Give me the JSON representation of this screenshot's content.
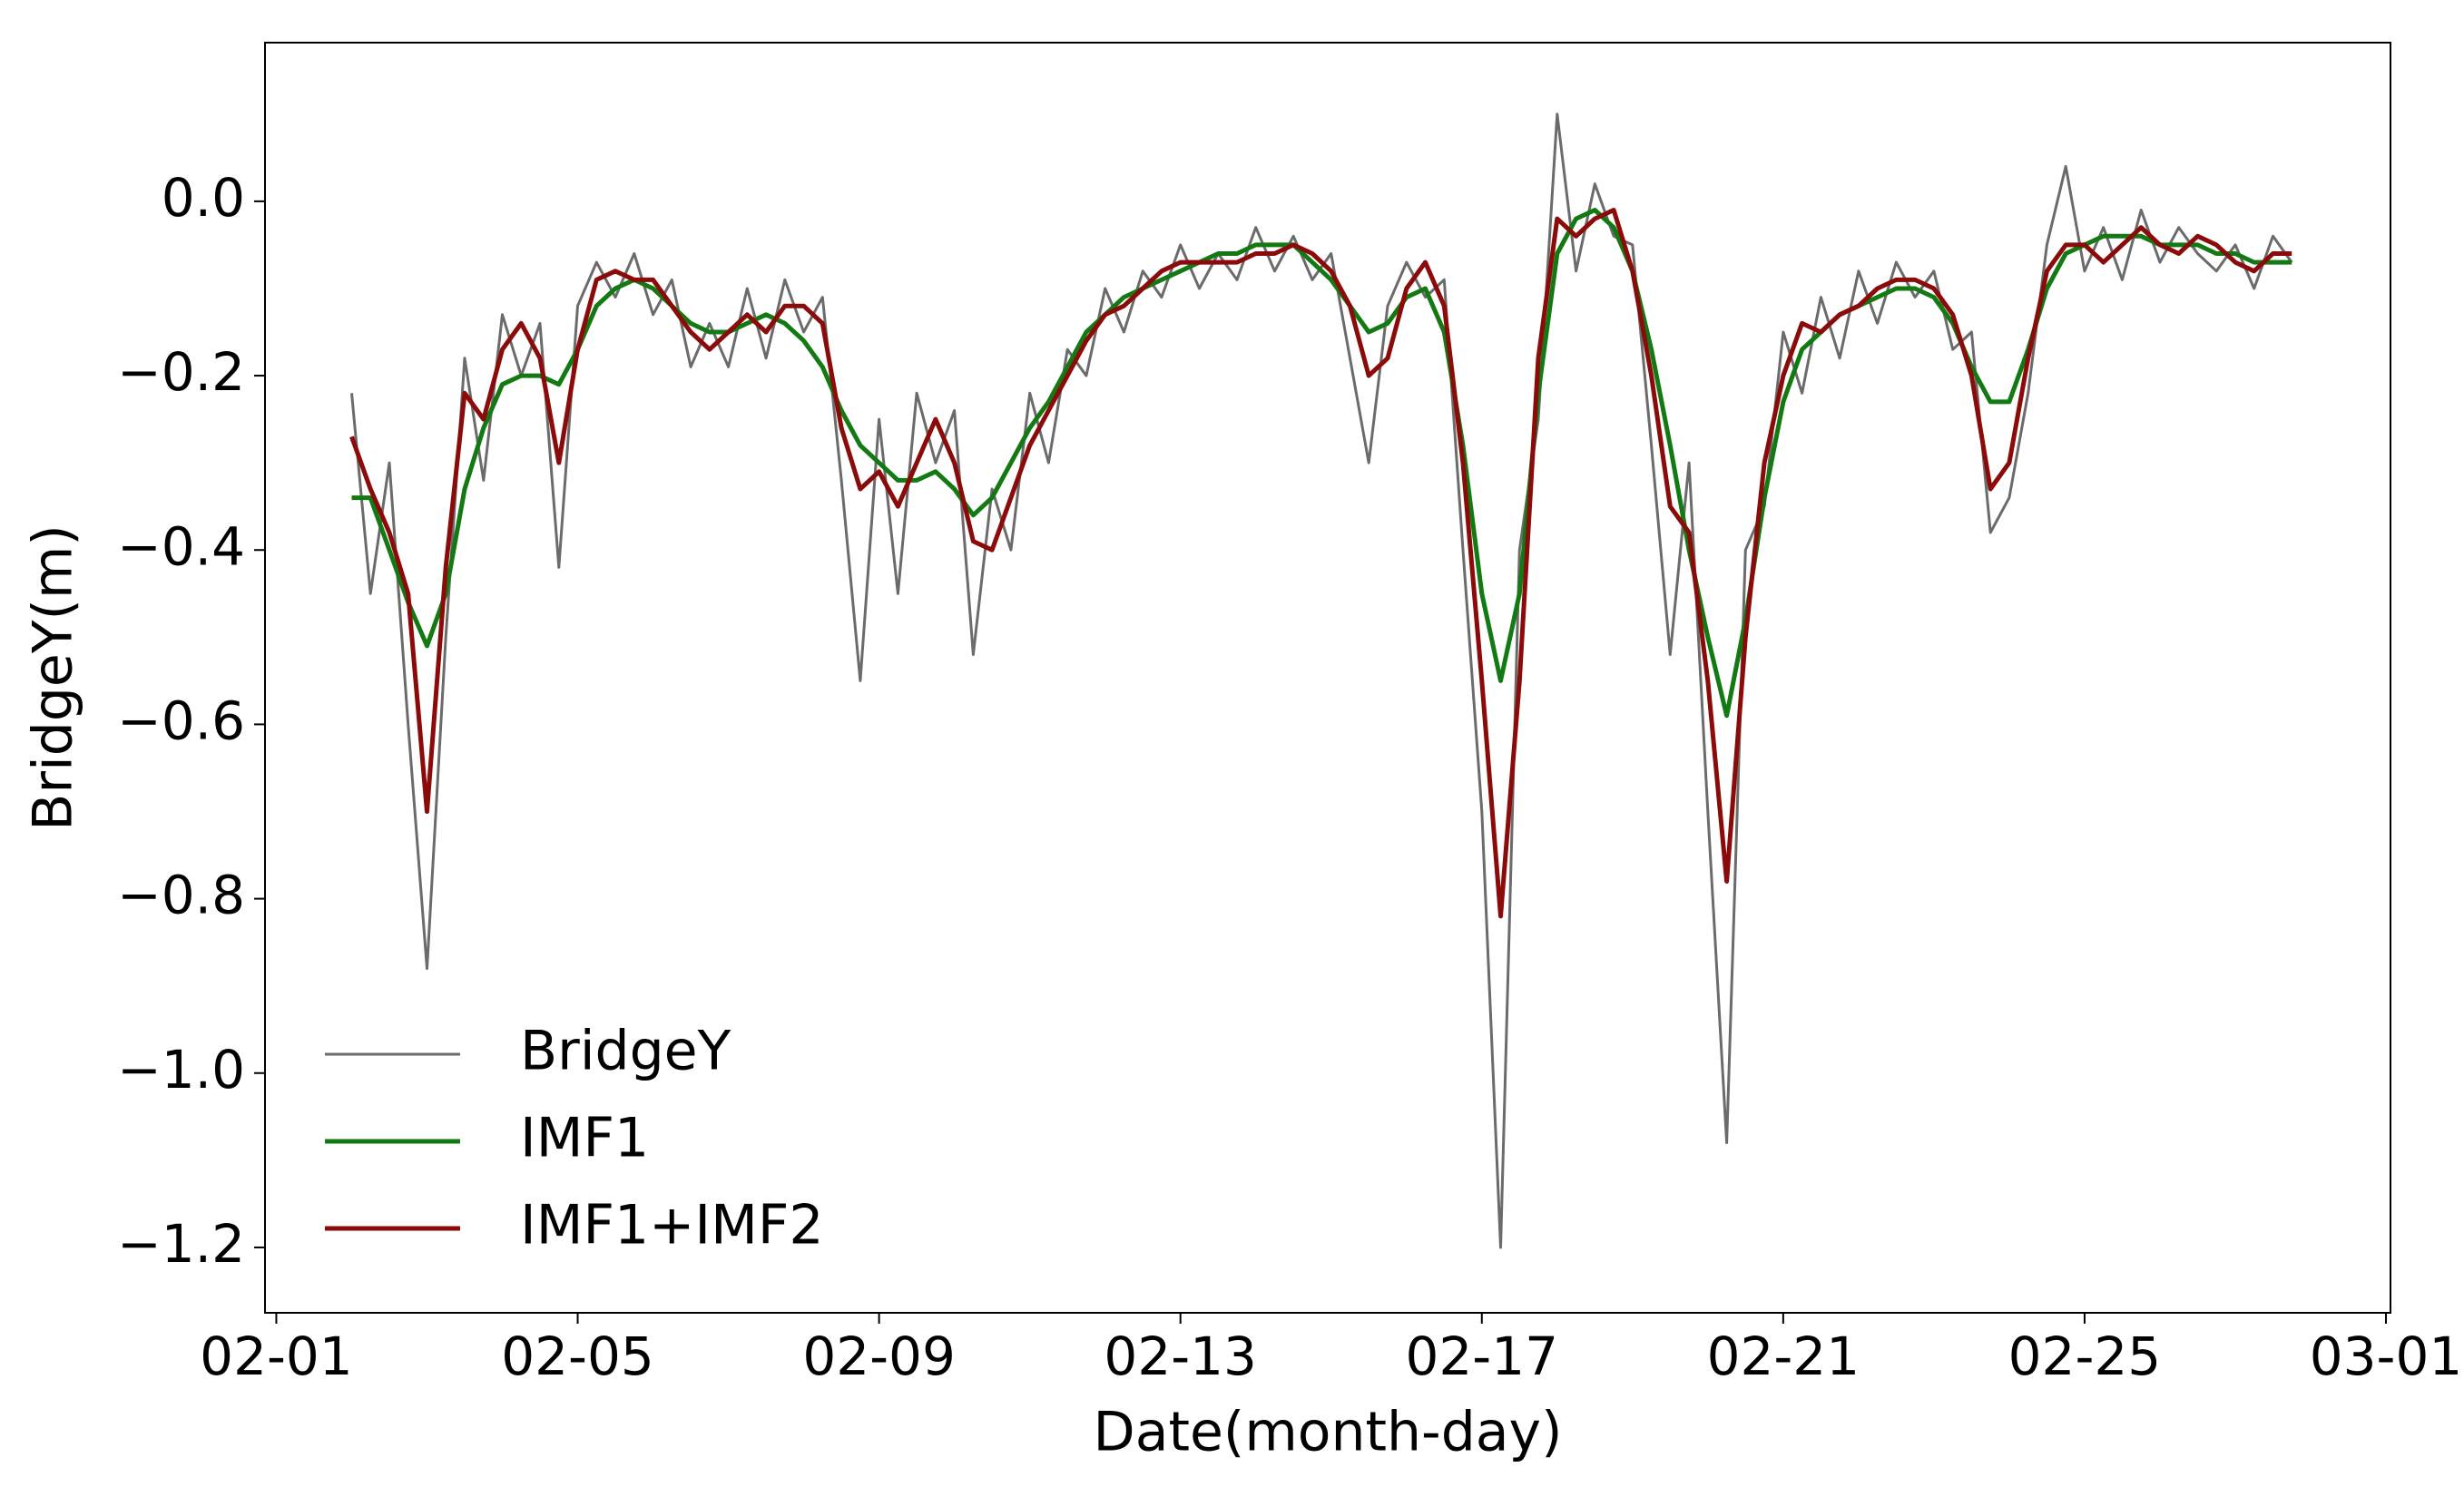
{
  "chart_data": {
    "type": "line",
    "xlabel": "Date(month-day)",
    "ylabel": "BridgeY(m)",
    "xlim": [
      0.85,
      29.06
    ],
    "ylim": [
      -1.275,
      0.182
    ],
    "xticks": [
      {
        "value": 1,
        "label": "02-01"
      },
      {
        "value": 5,
        "label": "02-05"
      },
      {
        "value": 9,
        "label": "02-09"
      },
      {
        "value": 13,
        "label": "02-13"
      },
      {
        "value": 17,
        "label": "02-17"
      },
      {
        "value": 21,
        "label": "02-21"
      },
      {
        "value": 25,
        "label": "02-25"
      },
      {
        "value": 29,
        "label": "03-01"
      }
    ],
    "yticks": [
      {
        "value": 0,
        "label": "0.0"
      },
      {
        "value": -0.2,
        "label": "−0.2"
      },
      {
        "value": -0.4,
        "label": "−0.4"
      },
      {
        "value": -0.6,
        "label": "−0.6"
      },
      {
        "value": -0.8,
        "label": "−0.8"
      },
      {
        "value": -1.0,
        "label": "−1.0"
      },
      {
        "value": -1.2,
        "label": "−1.2"
      }
    ],
    "legend": "lower left",
    "x": [
      2,
      2.25,
      2.5,
      2.75,
      3,
      3.25,
      3.5,
      3.75,
      4,
      4.25,
      4.5,
      4.75,
      5,
      5.25,
      5.5,
      5.75,
      6,
      6.25,
      6.5,
      6.75,
      7,
      7.25,
      7.5,
      7.75,
      8,
      8.25,
      8.5,
      8.75,
      9,
      9.25,
      9.5,
      9.75,
      10,
      10.25,
      10.5,
      10.75,
      11,
      11.25,
      11.5,
      11.75,
      12,
      12.25,
      12.5,
      12.75,
      13,
      13.25,
      13.5,
      13.75,
      14,
      14.25,
      14.5,
      14.75,
      15,
      15.25,
      15.5,
      15.75,
      16,
      16.25,
      16.5,
      16.75,
      17,
      17.25,
      17.5,
      17.75,
      18,
      18.25,
      18.5,
      18.75,
      19,
      19.25,
      19.5,
      19.75,
      20,
      20.25,
      20.5,
      20.75,
      21,
      21.25,
      21.5,
      21.75,
      22,
      22.25,
      22.5,
      22.75,
      23,
      23.25,
      23.5,
      23.75,
      24,
      24.25,
      24.5,
      24.75,
      25,
      25.25,
      25.5,
      25.75,
      26,
      26.25,
      26.5,
      26.75,
      27,
      27.25,
      27.5,
      27.75
    ],
    "series": [
      {
        "name": "BridgeY",
        "color": "#6b6b6b",
        "width": 3,
        "values": [
          -0.22,
          -0.45,
          -0.3,
          -0.6,
          -0.88,
          -0.5,
          -0.18,
          -0.32,
          -0.13,
          -0.2,
          -0.14,
          -0.42,
          -0.12,
          -0.07,
          -0.11,
          -0.06,
          -0.13,
          -0.09,
          -0.19,
          -0.14,
          -0.19,
          -0.1,
          -0.18,
          -0.09,
          -0.15,
          -0.11,
          -0.32,
          -0.55,
          -0.25,
          -0.45,
          -0.22,
          -0.3,
          -0.24,
          -0.52,
          -0.33,
          -0.4,
          -0.22,
          -0.3,
          -0.17,
          -0.2,
          -0.1,
          -0.15,
          -0.08,
          -0.11,
          -0.05,
          -0.1,
          -0.06,
          -0.09,
          -0.03,
          -0.08,
          -0.04,
          -0.09,
          -0.06,
          -0.18,
          -0.3,
          -0.12,
          -0.07,
          -0.11,
          -0.09,
          -0.4,
          -0.7,
          -1.2,
          -0.4,
          -0.25,
          0.1,
          -0.08,
          0.02,
          -0.04,
          -0.05,
          -0.28,
          -0.52,
          -0.3,
          -0.7,
          -1.08,
          -0.4,
          -0.35,
          -0.15,
          -0.22,
          -0.11,
          -0.18,
          -0.08,
          -0.14,
          -0.07,
          -0.11,
          -0.08,
          -0.17,
          -0.15,
          -0.38,
          -0.34,
          -0.22,
          -0.05,
          0.04,
          -0.08,
          -0.03,
          -0.09,
          -0.01,
          -0.07,
          -0.03,
          -0.06,
          -0.08,
          -0.05,
          -0.1,
          -0.04,
          -0.07
        ]
      },
      {
        "name": "IMF1",
        "color": "#137a13",
        "width": 5,
        "values": [
          -0.34,
          -0.34,
          -0.4,
          -0.46,
          -0.51,
          -0.45,
          -0.33,
          -0.26,
          -0.21,
          -0.2,
          -0.2,
          -0.21,
          -0.17,
          -0.12,
          -0.1,
          -0.09,
          -0.1,
          -0.12,
          -0.14,
          -0.15,
          -0.15,
          -0.14,
          -0.13,
          -0.14,
          -0.16,
          -0.19,
          -0.24,
          -0.28,
          -0.3,
          -0.32,
          -0.32,
          -0.31,
          -0.33,
          -0.36,
          -0.34,
          -0.3,
          -0.26,
          -0.23,
          -0.19,
          -0.15,
          -0.13,
          -0.11,
          -0.1,
          -0.09,
          -0.08,
          -0.07,
          -0.06,
          -0.06,
          -0.05,
          -0.05,
          -0.05,
          -0.07,
          -0.09,
          -0.12,
          -0.15,
          -0.14,
          -0.11,
          -0.1,
          -0.15,
          -0.28,
          -0.45,
          -0.55,
          -0.45,
          -0.22,
          -0.06,
          -0.02,
          -0.01,
          -0.03,
          -0.08,
          -0.17,
          -0.28,
          -0.4,
          -0.5,
          -0.59,
          -0.48,
          -0.34,
          -0.23,
          -0.17,
          -0.15,
          -0.13,
          -0.12,
          -0.11,
          -0.1,
          -0.1,
          -0.11,
          -0.14,
          -0.19,
          -0.23,
          -0.23,
          -0.17,
          -0.1,
          -0.06,
          -0.05,
          -0.04,
          -0.04,
          -0.04,
          -0.05,
          -0.05,
          -0.05,
          -0.06,
          -0.06,
          -0.07,
          -0.07,
          -0.07
        ]
      },
      {
        "name": "IMF1+IMF2",
        "color": "#8b0a0a",
        "width": 5,
        "values": [
          -0.27,
          -0.33,
          -0.38,
          -0.45,
          -0.7,
          -0.42,
          -0.22,
          -0.25,
          -0.17,
          -0.14,
          -0.18,
          -0.3,
          -0.17,
          -0.09,
          -0.08,
          -0.09,
          -0.09,
          -0.12,
          -0.15,
          -0.17,
          -0.15,
          -0.13,
          -0.15,
          -0.12,
          -0.12,
          -0.14,
          -0.26,
          -0.33,
          -0.31,
          -0.35,
          -0.3,
          -0.25,
          -0.3,
          -0.39,
          -0.4,
          -0.34,
          -0.28,
          -0.24,
          -0.2,
          -0.16,
          -0.13,
          -0.12,
          -0.1,
          -0.08,
          -0.07,
          -0.07,
          -0.07,
          -0.07,
          -0.06,
          -0.06,
          -0.05,
          -0.06,
          -0.08,
          -0.12,
          -0.2,
          -0.18,
          -0.1,
          -0.07,
          -0.12,
          -0.3,
          -0.55,
          -0.82,
          -0.55,
          -0.18,
          -0.02,
          -0.04,
          -0.02,
          -0.01,
          -0.08,
          -0.2,
          -0.35,
          -0.38,
          -0.55,
          -0.78,
          -0.5,
          -0.3,
          -0.2,
          -0.14,
          -0.15,
          -0.13,
          -0.12,
          -0.1,
          -0.09,
          -0.09,
          -0.1,
          -0.13,
          -0.2,
          -0.33,
          -0.3,
          -0.18,
          -0.08,
          -0.05,
          -0.05,
          -0.07,
          -0.05,
          -0.03,
          -0.05,
          -0.06,
          -0.04,
          -0.05,
          -0.07,
          -0.08,
          -0.06,
          -0.06
        ]
      }
    ]
  }
}
